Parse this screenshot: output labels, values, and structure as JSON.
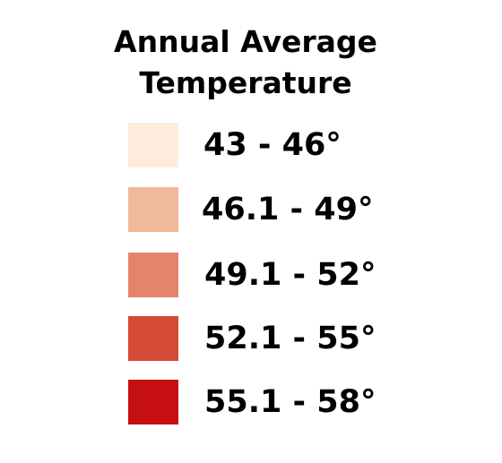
{
  "legend": {
    "title_line1": "Annual Average",
    "title_line2": "Temperature",
    "items": [
      {
        "label": "43 - 46°",
        "color": "#fdebdc"
      },
      {
        "label": "46.1 - 49°",
        "color": "#f0b99b"
      },
      {
        "label": "49.1 - 52°",
        "color": "#e5846a"
      },
      {
        "label": "52.1 - 55°",
        "color": "#d54a35"
      },
      {
        "label": "55.1 - 58°",
        "color": "#c50f11"
      }
    ]
  }
}
